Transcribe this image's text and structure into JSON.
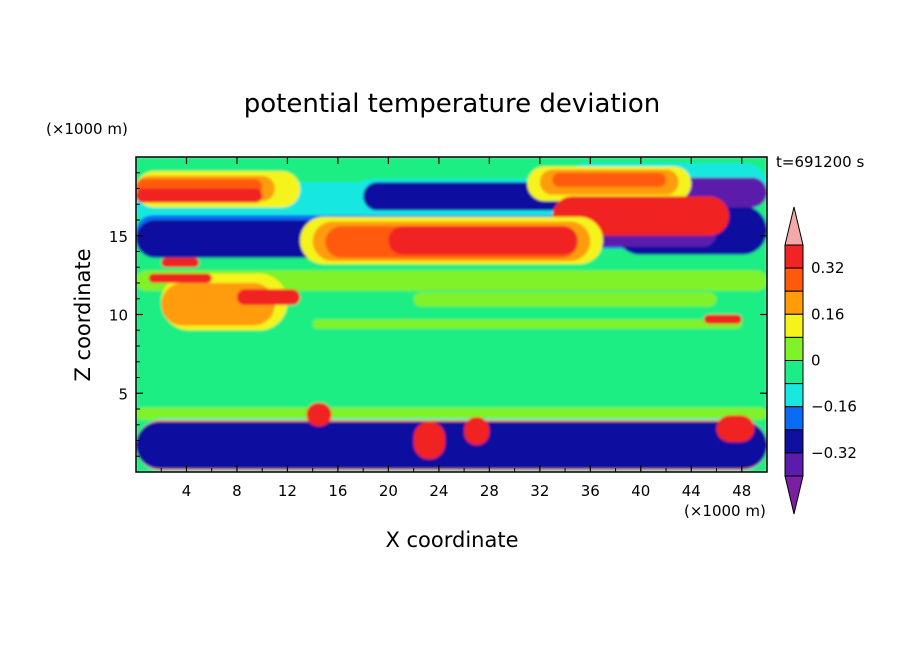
{
  "chart_data": {
    "type": "heatmap",
    "title": "potential temperature deviation",
    "xlabel": "X coordinate",
    "ylabel": "Z coordinate",
    "x_unit": "(×1000 m)",
    "y_unit": "(×1000 m)",
    "time_label": "t=691200 s",
    "xlim": [
      0,
      50
    ],
    "ylim": [
      0,
      20
    ],
    "x_ticks": [
      4,
      8,
      12,
      16,
      20,
      24,
      28,
      32,
      36,
      40,
      44,
      48
    ],
    "y_ticks": [
      5,
      10,
      15
    ],
    "colorbar": {
      "levels": [
        -0.4,
        -0.32,
        -0.24,
        -0.16,
        -0.08,
        0,
        0.08,
        0.16,
        0.24,
        0.32,
        0.4
      ],
      "labels": [
        "0.32",
        "0.16",
        "0",
        "−0.16",
        "−0.32"
      ],
      "label_values": [
        0.32,
        0.16,
        0,
        -0.16,
        -0.32
      ],
      "colors": [
        "#7a1fa2",
        "#5b1bab",
        "#0f0fa0",
        "#0a6cf5",
        "#17e8e0",
        "#1aee84",
        "#7ff22a",
        "#f4f41a",
        "#ff9c08",
        "#ff5a0a",
        "#f02424",
        "#f4a9a9"
      ],
      "extend": "both"
    },
    "regions": [
      {
        "level": 0,
        "x": [
          0,
          50
        ],
        "z": [
          0,
          20
        ]
      },
      {
        "level": 1,
        "x": [
          0,
          50
        ],
        "z": [
          11.5,
          12.8
        ]
      },
      {
        "level": 1,
        "x": [
          22,
          46
        ],
        "z": [
          10.5,
          11.4
        ]
      },
      {
        "level": 1,
        "x": [
          14,
          48
        ],
        "z": [
          9.1,
          9.7
        ]
      },
      {
        "level": 1,
        "x": [
          0,
          50
        ],
        "z": [
          3.3,
          4.1
        ]
      },
      {
        "level": -1,
        "x": [
          34,
          50
        ],
        "z": [
          16.8,
          19.6
        ]
      },
      {
        "level": -1,
        "x": [
          0,
          22
        ],
        "z": [
          15.5,
          18.4
        ]
      },
      {
        "level": -1,
        "x": [
          17,
          38
        ],
        "z": [
          15.8,
          18.6
        ]
      },
      {
        "level": -1,
        "x": [
          0,
          50
        ],
        "z": [
          0,
          3.4
        ]
      },
      {
        "level": -2,
        "x": [
          0,
          50
        ],
        "z": [
          14.2,
          16.3
        ]
      },
      {
        "level": -3,
        "x": [
          0,
          15
        ],
        "z": [
          13.6,
          16.0
        ]
      },
      {
        "level": -3,
        "x": [
          38,
          50
        ],
        "z": [
          13.8,
          16.9
        ]
      },
      {
        "level": -4,
        "x": [
          33,
          46
        ],
        "z": [
          14.3,
          16.0
        ]
      },
      {
        "level": -3,
        "x": [
          18,
          34
        ],
        "z": [
          16.6,
          18.4
        ]
      },
      {
        "level": -4,
        "x": [
          39,
          50
        ],
        "z": [
          16.8,
          18.7
        ]
      },
      {
        "level": 2,
        "x": [
          0,
          13
        ],
        "z": [
          16.8,
          19.1
        ]
      },
      {
        "level": 3,
        "x": [
          0,
          11
        ],
        "z": [
          17.2,
          18.8
        ]
      },
      {
        "level": 4,
        "x": [
          0,
          10
        ],
        "z": [
          17.6,
          18.6
        ]
      },
      {
        "level": 5,
        "x": [
          0,
          10
        ],
        "z": [
          17.1,
          18.0
        ]
      },
      {
        "level": 2,
        "x": [
          31,
          44
        ],
        "z": [
          17.2,
          19.4
        ]
      },
      {
        "level": 3,
        "x": [
          32,
          43
        ],
        "z": [
          17.6,
          19.2
        ]
      },
      {
        "level": 4,
        "x": [
          33,
          42
        ],
        "z": [
          18.1,
          19.0
        ]
      },
      {
        "level": 5,
        "x": [
          33,
          47
        ],
        "z": [
          15.0,
          17.5
        ]
      },
      {
        "level": 2,
        "x": [
          13,
          37
        ],
        "z": [
          13.2,
          16.2
        ]
      },
      {
        "level": 3,
        "x": [
          14,
          36
        ],
        "z": [
          13.4,
          15.9
        ]
      },
      {
        "level": 4,
        "x": [
          15,
          35
        ],
        "z": [
          13.6,
          15.6
        ]
      },
      {
        "level": 5,
        "x": [
          20,
          35
        ],
        "z": [
          13.8,
          15.6
        ]
      },
      {
        "level": 2,
        "x": [
          2,
          12
        ],
        "z": [
          9.0,
          12.6
        ]
      },
      {
        "level": 3,
        "x": [
          2,
          11
        ],
        "z": [
          9.3,
          12.0
        ]
      },
      {
        "level": 5,
        "x": [
          8,
          13
        ],
        "z": [
          10.6,
          11.6
        ]
      },
      {
        "level": 5,
        "x": [
          1,
          6
        ],
        "z": [
          12.0,
          12.6
        ]
      },
      {
        "level": 5,
        "x": [
          2,
          5
        ],
        "z": [
          13.0,
          13.6
        ]
      },
      {
        "level": 5,
        "x": [
          45,
          48
        ],
        "z": [
          9.4,
          10.0
        ]
      },
      {
        "level": 3,
        "x": [
          0,
          50
        ],
        "z": [
          0.1,
          3.3
        ]
      },
      {
        "level": 4,
        "x": [
          0,
          50
        ],
        "z": [
          0.4,
          3.0
        ]
      },
      {
        "level": -3,
        "x": [
          0,
          50
        ],
        "z": [
          0.2,
          3.2
        ]
      },
      {
        "level": 5,
        "x": [
          13.5,
          15.5
        ],
        "z": [
          2.9,
          4.4
        ]
      },
      {
        "level": 5,
        "x": [
          22,
          24.5
        ],
        "z": [
          0.8,
          3.2
        ]
      },
      {
        "level": 5,
        "x": [
          26,
          28
        ],
        "z": [
          1.7,
          3.5
        ]
      },
      {
        "level": 5,
        "x": [
          46,
          49
        ],
        "z": [
          1.9,
          3.6
        ]
      }
    ]
  }
}
